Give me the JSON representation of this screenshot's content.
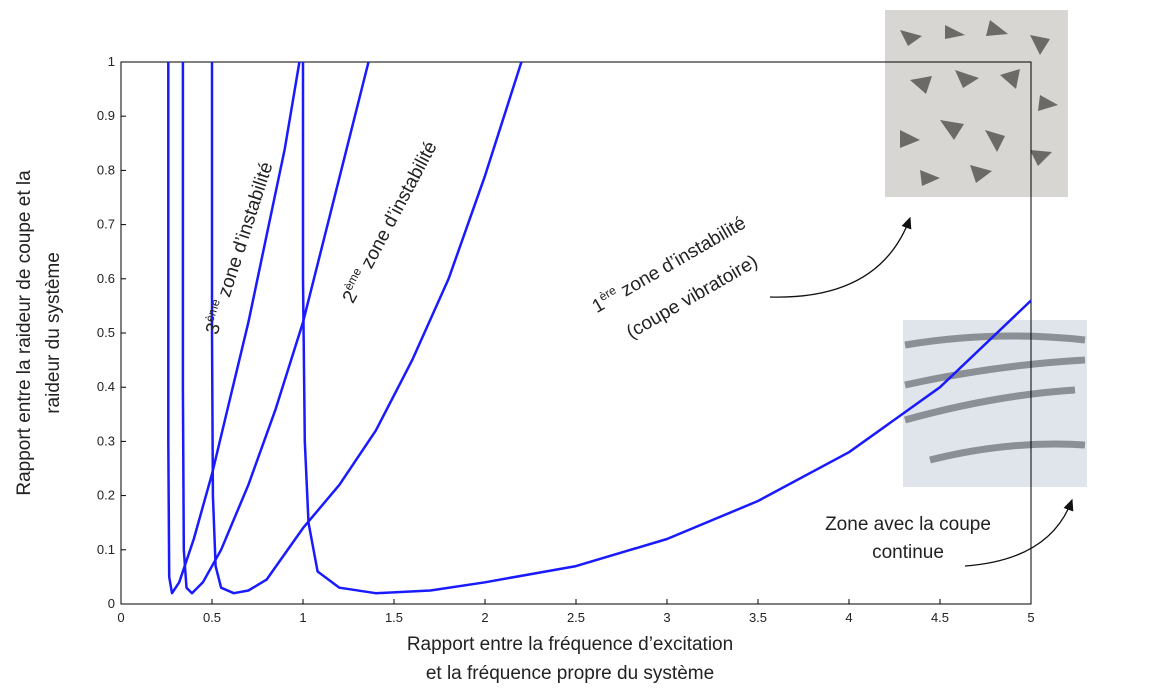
{
  "chart_data": {
    "type": "line",
    "xlim": [
      0,
      5
    ],
    "ylim": [
      0,
      1
    ],
    "xticks": [
      0,
      0.5,
      1,
      1.5,
      2,
      2.5,
      3,
      3.5,
      4,
      4.5,
      5
    ],
    "yticks": [
      0,
      0.1,
      0.2,
      0.3,
      0.4,
      0.5,
      0.6,
      0.7,
      0.8,
      0.9,
      1
    ],
    "x_label": [
      "Rapport entre la fréquence d’excitation",
      "et la fréquence propre du système"
    ],
    "y_label": [
      "Rapport entre la raideur de coupe et la",
      "raideur du système"
    ],
    "series": [
      {
        "color": "#1a1aff",
        "x": [
          1.0,
          1.0,
          1.01,
          1.03,
          1.08,
          1.2,
          1.4,
          1.7,
          2,
          2.5,
          3,
          3.5,
          4,
          4.5,
          5
        ],
        "values": [
          1.0,
          0.6,
          0.3,
          0.15,
          0.06,
          0.03,
          0.02,
          0.025,
          0.04,
          0.07,
          0.12,
          0.19,
          0.28,
          0.4,
          0.56
        ]
      },
      {
        "color": "#1a1aff",
        "x": [
          0.5,
          0.5,
          0.505,
          0.52,
          0.55,
          0.62,
          0.7,
          0.8,
          1,
          1.2,
          1.4,
          1.6,
          1.8,
          2,
          2.2
        ],
        "values": [
          1,
          0.5,
          0.2,
          0.07,
          0.03,
          0.02,
          0.025,
          0.045,
          0.14,
          0.22,
          0.32,
          0.45,
          0.6,
          0.79,
          1
        ]
      },
      {
        "color": "#1a1aff",
        "x": [
          0.34,
          0.34,
          0.345,
          0.36,
          0.39,
          0.45,
          0.55,
          0.7,
          0.85,
          1,
          1.15,
          1.36
        ],
        "values": [
          1,
          0.4,
          0.1,
          0.03,
          0.02,
          0.04,
          0.1,
          0.22,
          0.36,
          0.52,
          0.72,
          1
        ]
      },
      {
        "color": "#1a1aff",
        "x": [
          0.26,
          0.26,
          0.265,
          0.28,
          0.32,
          0.4,
          0.5,
          0.6,
          0.7,
          0.8,
          0.9,
          0.98
        ],
        "values": [
          1,
          0.3,
          0.05,
          0.02,
          0.04,
          0.12,
          0.24,
          0.38,
          0.52,
          0.68,
          0.84,
          1
        ]
      }
    ],
    "annotations": [
      {
        "base": "3",
        "sup": "ème",
        "text": " zone d’instabilité"
      },
      {
        "base": "2",
        "sup": "ème",
        "text": " zone d’instabilité"
      },
      {
        "base": "1",
        "sup": "ère",
        "text": " zone d’instabilité"
      },
      {
        "text": "(coupe vibratoire)"
      },
      {
        "text": "Zone avec la coupe"
      },
      {
        "text": "continue"
      }
    ]
  }
}
